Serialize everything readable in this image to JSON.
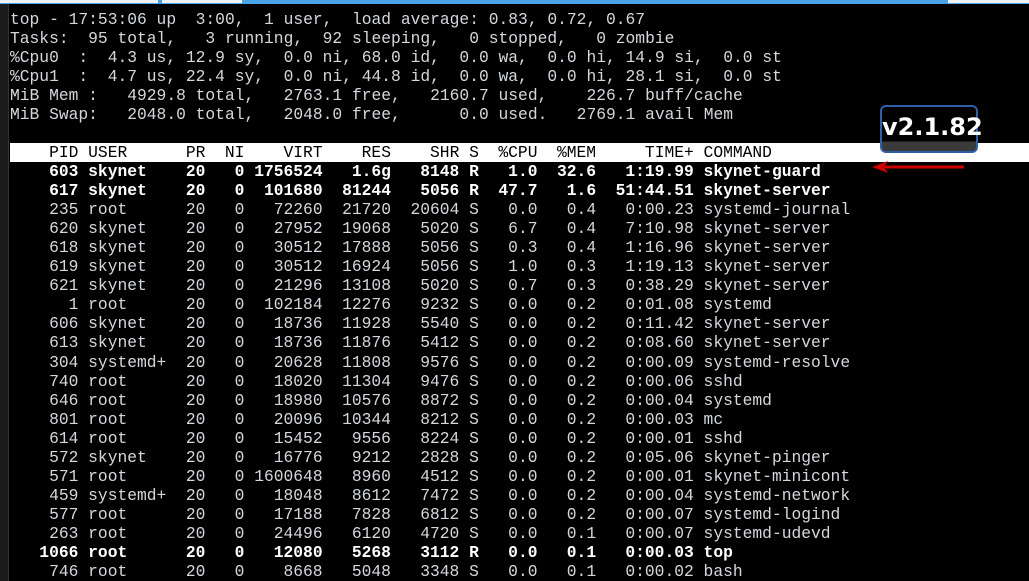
{
  "summary": [
    "top - 17:53:06 up  3:00,  1 user,  load average: 0.83, 0.72, 0.67",
    "Tasks:  95 total,   3 running,  92 sleeping,   0 stopped,   0 zombie",
    "%Cpu0  :  4.3 us, 12.9 sy,  0.0 ni, 68.0 id,  0.0 wa,  0.0 hi, 14.9 si,  0.0 st",
    "%Cpu1  :  4.7 us, 22.4 sy,  0.0 ni, 44.8 id,  0.0 wa,  0.0 hi, 28.1 si,  0.0 st",
    "MiB Mem :   4929.8 total,   2763.1 free,   2160.7 used,    226.7 buff/cache",
    "MiB Swap:   2048.0 total,   2048.0 free,      0.0 used.   2769.1 avail Mem"
  ],
  "columns": [
    "PID",
    "USER",
    "PR",
    "NI",
    "VIRT",
    "RES",
    "SHR",
    "S",
    "%CPU",
    "%MEM",
    "TIME+",
    "COMMAND"
  ],
  "processes": [
    {
      "pid": "603",
      "user": "skynet",
      "pr": "20",
      "ni": "0",
      "virt": "1756524",
      "res": "1.6g",
      "shr": "8148",
      "s": "R",
      "cpu": "1.0",
      "mem": "32.6",
      "time": "1:19.99",
      "cmd": "skynet-guard",
      "bold": true
    },
    {
      "pid": "617",
      "user": "skynet",
      "pr": "20",
      "ni": "0",
      "virt": "101680",
      "res": "81244",
      "shr": "5056",
      "s": "R",
      "cpu": "47.7",
      "mem": "1.6",
      "time": "51:44.51",
      "cmd": "skynet-server",
      "bold": true
    },
    {
      "pid": "235",
      "user": "root",
      "pr": "20",
      "ni": "0",
      "virt": "72260",
      "res": "21720",
      "shr": "20604",
      "s": "S",
      "cpu": "0.0",
      "mem": "0.4",
      "time": "0:00.23",
      "cmd": "systemd-journal"
    },
    {
      "pid": "620",
      "user": "skynet",
      "pr": "20",
      "ni": "0",
      "virt": "27952",
      "res": "19068",
      "shr": "5020",
      "s": "S",
      "cpu": "6.7",
      "mem": "0.4",
      "time": "7:10.98",
      "cmd": "skynet-server"
    },
    {
      "pid": "618",
      "user": "skynet",
      "pr": "20",
      "ni": "0",
      "virt": "30512",
      "res": "17888",
      "shr": "5056",
      "s": "S",
      "cpu": "0.3",
      "mem": "0.4",
      "time": "1:16.96",
      "cmd": "skynet-server"
    },
    {
      "pid": "619",
      "user": "skynet",
      "pr": "20",
      "ni": "0",
      "virt": "30512",
      "res": "16924",
      "shr": "5056",
      "s": "S",
      "cpu": "1.0",
      "mem": "0.3",
      "time": "1:19.13",
      "cmd": "skynet-server"
    },
    {
      "pid": "621",
      "user": "skynet",
      "pr": "20",
      "ni": "0",
      "virt": "21296",
      "res": "13108",
      "shr": "5020",
      "s": "S",
      "cpu": "0.7",
      "mem": "0.3",
      "time": "0:38.29",
      "cmd": "skynet-server"
    },
    {
      "pid": "1",
      "user": "root",
      "pr": "20",
      "ni": "0",
      "virt": "102184",
      "res": "12276",
      "shr": "9232",
      "s": "S",
      "cpu": "0.0",
      "mem": "0.2",
      "time": "0:01.08",
      "cmd": "systemd"
    },
    {
      "pid": "606",
      "user": "skynet",
      "pr": "20",
      "ni": "0",
      "virt": "18736",
      "res": "11928",
      "shr": "5540",
      "s": "S",
      "cpu": "0.0",
      "mem": "0.2",
      "time": "0:11.42",
      "cmd": "skynet-server"
    },
    {
      "pid": "613",
      "user": "skynet",
      "pr": "20",
      "ni": "0",
      "virt": "18736",
      "res": "11876",
      "shr": "5412",
      "s": "S",
      "cpu": "0.0",
      "mem": "0.2",
      "time": "0:08.60",
      "cmd": "skynet-server"
    },
    {
      "pid": "304",
      "user": "systemd+",
      "pr": "20",
      "ni": "0",
      "virt": "20628",
      "res": "11808",
      "shr": "9576",
      "s": "S",
      "cpu": "0.0",
      "mem": "0.2",
      "time": "0:00.09",
      "cmd": "systemd-resolve"
    },
    {
      "pid": "740",
      "user": "root",
      "pr": "20",
      "ni": "0",
      "virt": "18020",
      "res": "11304",
      "shr": "9476",
      "s": "S",
      "cpu": "0.0",
      "mem": "0.2",
      "time": "0:00.06",
      "cmd": "sshd"
    },
    {
      "pid": "646",
      "user": "root",
      "pr": "20",
      "ni": "0",
      "virt": "18980",
      "res": "10576",
      "shr": "8872",
      "s": "S",
      "cpu": "0.0",
      "mem": "0.2",
      "time": "0:00.04",
      "cmd": "systemd"
    },
    {
      "pid": "801",
      "user": "root",
      "pr": "20",
      "ni": "0",
      "virt": "20096",
      "res": "10344",
      "shr": "8212",
      "s": "S",
      "cpu": "0.0",
      "mem": "0.2",
      "time": "0:00.03",
      "cmd": "mc"
    },
    {
      "pid": "614",
      "user": "root",
      "pr": "20",
      "ni": "0",
      "virt": "15452",
      "res": "9556",
      "shr": "8224",
      "s": "S",
      "cpu": "0.0",
      "mem": "0.2",
      "time": "0:00.01",
      "cmd": "sshd"
    },
    {
      "pid": "572",
      "user": "skynet",
      "pr": "20",
      "ni": "0",
      "virt": "16776",
      "res": "9212",
      "shr": "2828",
      "s": "S",
      "cpu": "0.0",
      "mem": "0.2",
      "time": "0:05.06",
      "cmd": "skynet-pinger"
    },
    {
      "pid": "571",
      "user": "root",
      "pr": "20",
      "ni": "0",
      "virt": "1600648",
      "res": "8960",
      "shr": "4512",
      "s": "S",
      "cpu": "0.0",
      "mem": "0.2",
      "time": "0:00.01",
      "cmd": "skynet-minicont"
    },
    {
      "pid": "459",
      "user": "systemd+",
      "pr": "20",
      "ni": "0",
      "virt": "18048",
      "res": "8612",
      "shr": "7472",
      "s": "S",
      "cpu": "0.0",
      "mem": "0.2",
      "time": "0:00.04",
      "cmd": "systemd-network"
    },
    {
      "pid": "577",
      "user": "root",
      "pr": "20",
      "ni": "0",
      "virt": "17188",
      "res": "7828",
      "shr": "6812",
      "s": "S",
      "cpu": "0.0",
      "mem": "0.2",
      "time": "0:00.07",
      "cmd": "systemd-logind"
    },
    {
      "pid": "263",
      "user": "root",
      "pr": "20",
      "ni": "0",
      "virt": "24496",
      "res": "6120",
      "shr": "4720",
      "s": "S",
      "cpu": "0.0",
      "mem": "0.1",
      "time": "0:00.07",
      "cmd": "systemd-udevd"
    },
    {
      "pid": "1066",
      "user": "root",
      "pr": "20",
      "ni": "0",
      "virt": "12080",
      "res": "5268",
      "shr": "3112",
      "s": "R",
      "cpu": "0.0",
      "mem": "0.1",
      "time": "0:00.03",
      "cmd": "top",
      "bold": true
    },
    {
      "pid": "746",
      "user": "root",
      "pr": "20",
      "ni": "0",
      "virt": "8668",
      "res": "5048",
      "shr": "3348",
      "s": "S",
      "cpu": "0.0",
      "mem": "0.1",
      "time": "0:00.02",
      "cmd": "bash"
    }
  ],
  "annotation": {
    "label": "v2.1.82",
    "arrow_color": "#cc0000",
    "border_color": "#2f5fa8"
  }
}
